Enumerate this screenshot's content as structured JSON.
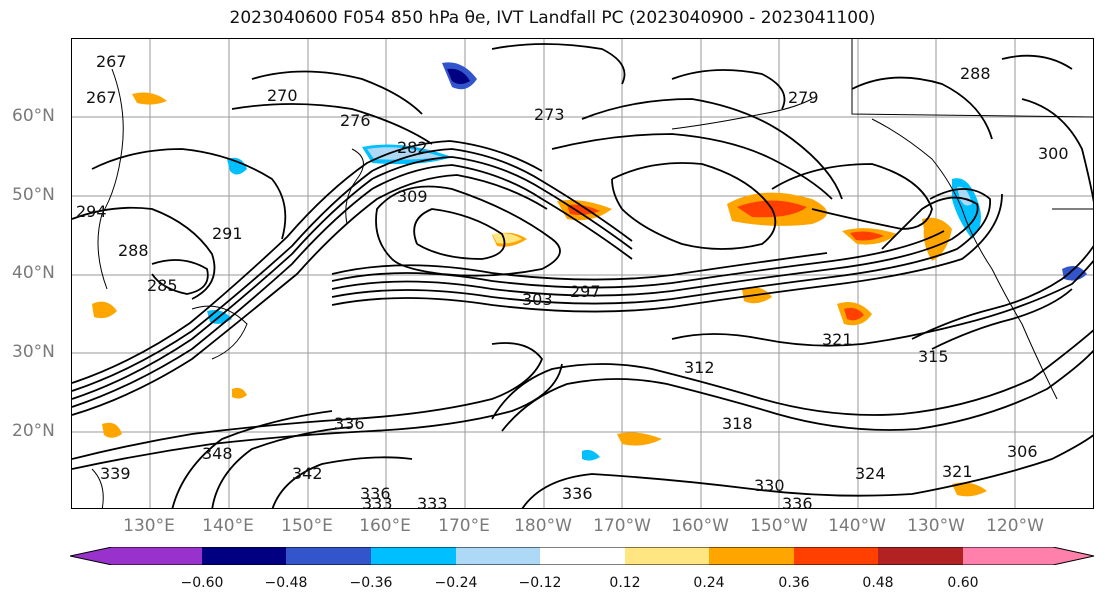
{
  "title": "2023040600 F054 850 hPa θe, IVT Landfall PC (2023040900 - 2023041100)",
  "lat_labels": [
    "60°N",
    "50°N",
    "40°N",
    "30°N",
    "20°N"
  ],
  "lon_labels": [
    "130°E",
    "140°E",
    "150°E",
    "160°E",
    "170°E",
    "180°W",
    "170°W",
    "160°W",
    "150°W",
    "140°W",
    "130°W",
    "120°W"
  ],
  "contour_labels": [
    "267",
    "270",
    "276",
    "282",
    "285",
    "288",
    "291",
    "294",
    "297",
    "303",
    "306",
    "309",
    "312",
    "315",
    "318",
    "321",
    "324",
    "330",
    "333",
    "336",
    "339",
    "342",
    "348",
    "267",
    "273",
    "279",
    "288",
    "300",
    "303"
  ],
  "colorbar": {
    "ticks": [
      "−0.60",
      "−0.48",
      "−0.36",
      "−0.24",
      "−0.12",
      "0.12",
      "0.24",
      "0.36",
      "0.48",
      "0.60"
    ],
    "colors": [
      "#9932cc",
      "#000080",
      "#3355cc",
      "#00bfff",
      "#add8f6",
      "#ffffff",
      "#ffe680",
      "#ffa500",
      "#ff4000",
      "#b22222",
      "#ff80aa"
    ]
  },
  "colors": {
    "contour": "#000000",
    "coast": "#000000",
    "grid": "#9a9a9a",
    "axis_label": "#7a7a7a"
  }
}
